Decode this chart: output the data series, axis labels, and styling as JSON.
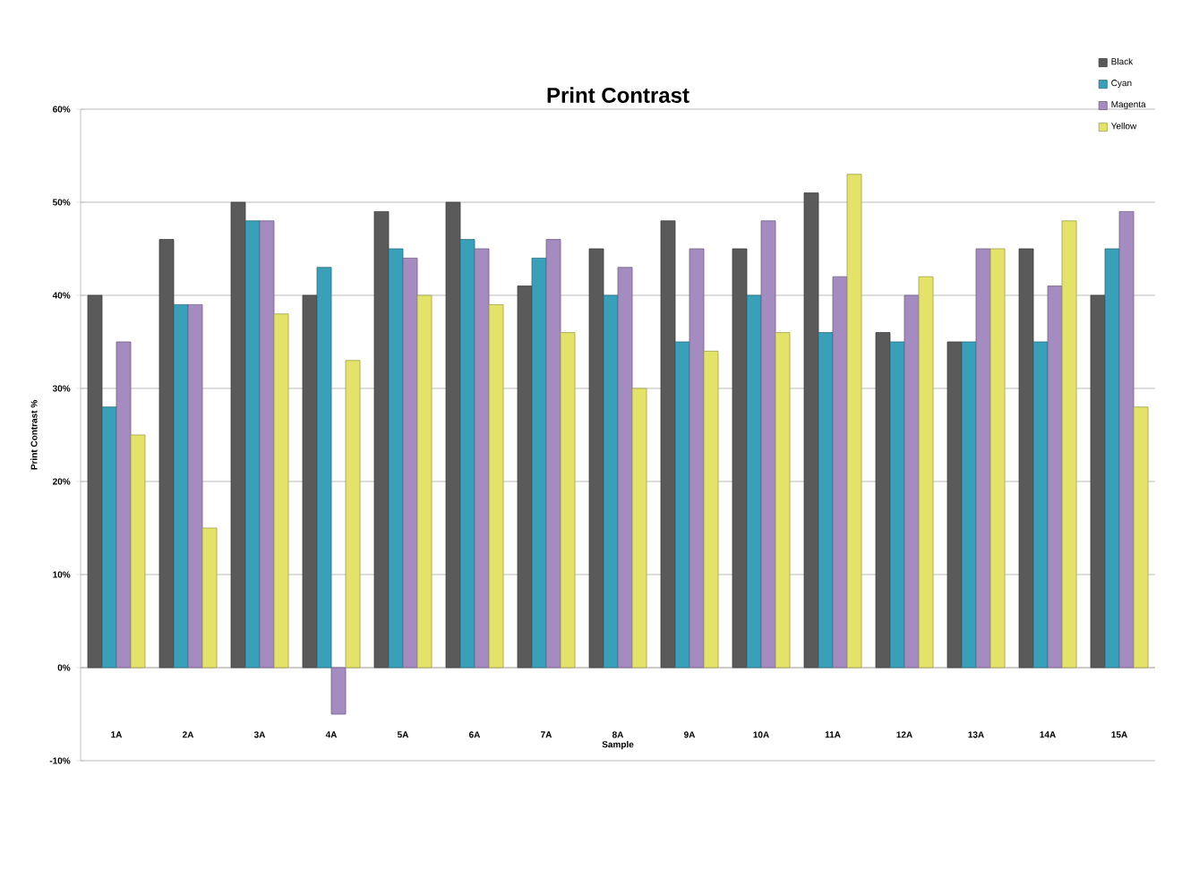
{
  "chart_data": {
    "type": "bar",
    "title": "Print Contrast",
    "xlabel": "Sample",
    "ylabel": "Print Contrast %",
    "categories": [
      "1A",
      "2A",
      "3A",
      "4A",
      "5A",
      "6A",
      "7A",
      "8A",
      "9A",
      "10A",
      "11A",
      "12A",
      "13A",
      "14A",
      "15A"
    ],
    "series": [
      {
        "name": "Black",
        "color": "#5a5a5a",
        "values": [
          40,
          46,
          50,
          40,
          49,
          50,
          41,
          45,
          48,
          45,
          51,
          36,
          35,
          45,
          40
        ]
      },
      {
        "name": "Cyan",
        "color": "#3a9fb8",
        "values": [
          28,
          39,
          48,
          43,
          45,
          46,
          44,
          40,
          35,
          40,
          36,
          35,
          35,
          35,
          45
        ]
      },
      {
        "name": "Magenta",
        "color": "#a48bc0",
        "values": [
          35,
          39,
          48,
          -5,
          44,
          45,
          46,
          43,
          45,
          48,
          42,
          40,
          45,
          41,
          49
        ]
      },
      {
        "name": "Yellow",
        "color": "#e3e36a",
        "values": [
          25,
          15,
          38,
          33,
          40,
          39,
          36,
          30,
          34,
          36,
          53,
          42,
          45,
          48,
          28
        ]
      }
    ],
    "ylim": [
      -10,
      60
    ],
    "yticks": [
      {
        "value": -10,
        "label": "-10%"
      },
      {
        "value": 0,
        "label": "0%"
      },
      {
        "value": 10,
        "label": "10%"
      },
      {
        "value": 20,
        "label": "20%"
      },
      {
        "value": 30,
        "label": "30%"
      },
      {
        "value": 40,
        "label": "40%"
      },
      {
        "value": 50,
        "label": "50%"
      },
      {
        "value": 60,
        "label": "60%"
      }
    ],
    "grid": "y",
    "legend": "top right"
  }
}
